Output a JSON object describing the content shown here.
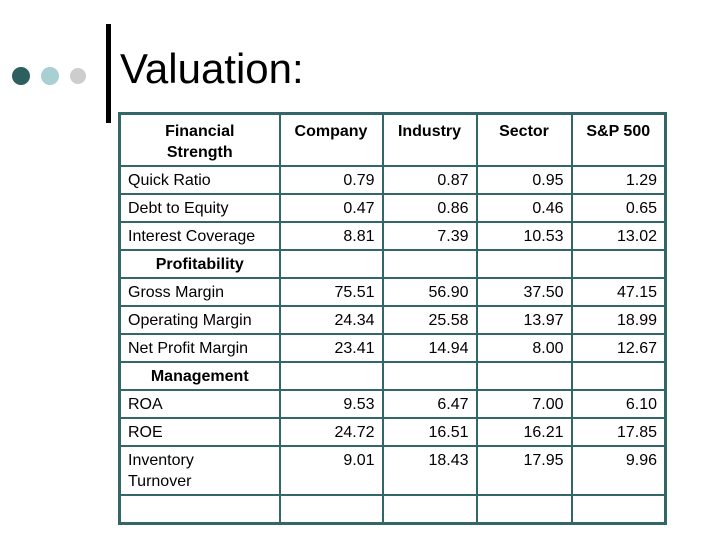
{
  "title": "Valuation:",
  "decor": {
    "circle_colors": [
      "#2E5F5F",
      "#A8CFD1",
      "#CDCDCD"
    ],
    "accent_bar_color": "#000000",
    "table_border_color": "#336666"
  },
  "table": {
    "columns": [
      "Financial\nStrength",
      "Company",
      "Industry",
      "Sector",
      "S&P 500"
    ],
    "rows": [
      {
        "type": "data",
        "label": "Quick Ratio",
        "values": [
          "0.79",
          "0.87",
          "0.95",
          "1.29"
        ]
      },
      {
        "type": "data",
        "label": "Debt to Equity",
        "values": [
          "0.47",
          "0.86",
          "0.46",
          "0.65"
        ]
      },
      {
        "type": "data",
        "label": "Interest Coverage",
        "values": [
          "8.81",
          "7.39",
          "10.53",
          "13.02"
        ]
      },
      {
        "type": "section",
        "label": "Profitability",
        "values": [
          "",
          "",
          "",
          ""
        ]
      },
      {
        "type": "data",
        "label": "Gross Margin",
        "values": [
          "75.51",
          "56.90",
          "37.50",
          "47.15"
        ]
      },
      {
        "type": "data",
        "label": "Operating Margin",
        "values": [
          "24.34",
          "25.58",
          "13.97",
          "18.99"
        ]
      },
      {
        "type": "data",
        "label": "Net Profit Margin",
        "values": [
          "23.41",
          "14.94",
          "8.00",
          "12.67"
        ]
      },
      {
        "type": "section",
        "label": "Management",
        "values": [
          "",
          "",
          "",
          ""
        ]
      },
      {
        "type": "data",
        "label": "ROA",
        "values": [
          "9.53",
          "6.47",
          "7.00",
          "6.10"
        ]
      },
      {
        "type": "data",
        "label": "ROE",
        "values": [
          "24.72",
          "16.51",
          "16.21",
          "17.85"
        ]
      },
      {
        "type": "data",
        "label": "Inventory\nTurnover",
        "values": [
          "9.01",
          "18.43",
          "17.95",
          "9.96"
        ]
      },
      {
        "type": "empty",
        "label": "",
        "values": [
          "",
          "",
          "",
          ""
        ]
      }
    ]
  }
}
